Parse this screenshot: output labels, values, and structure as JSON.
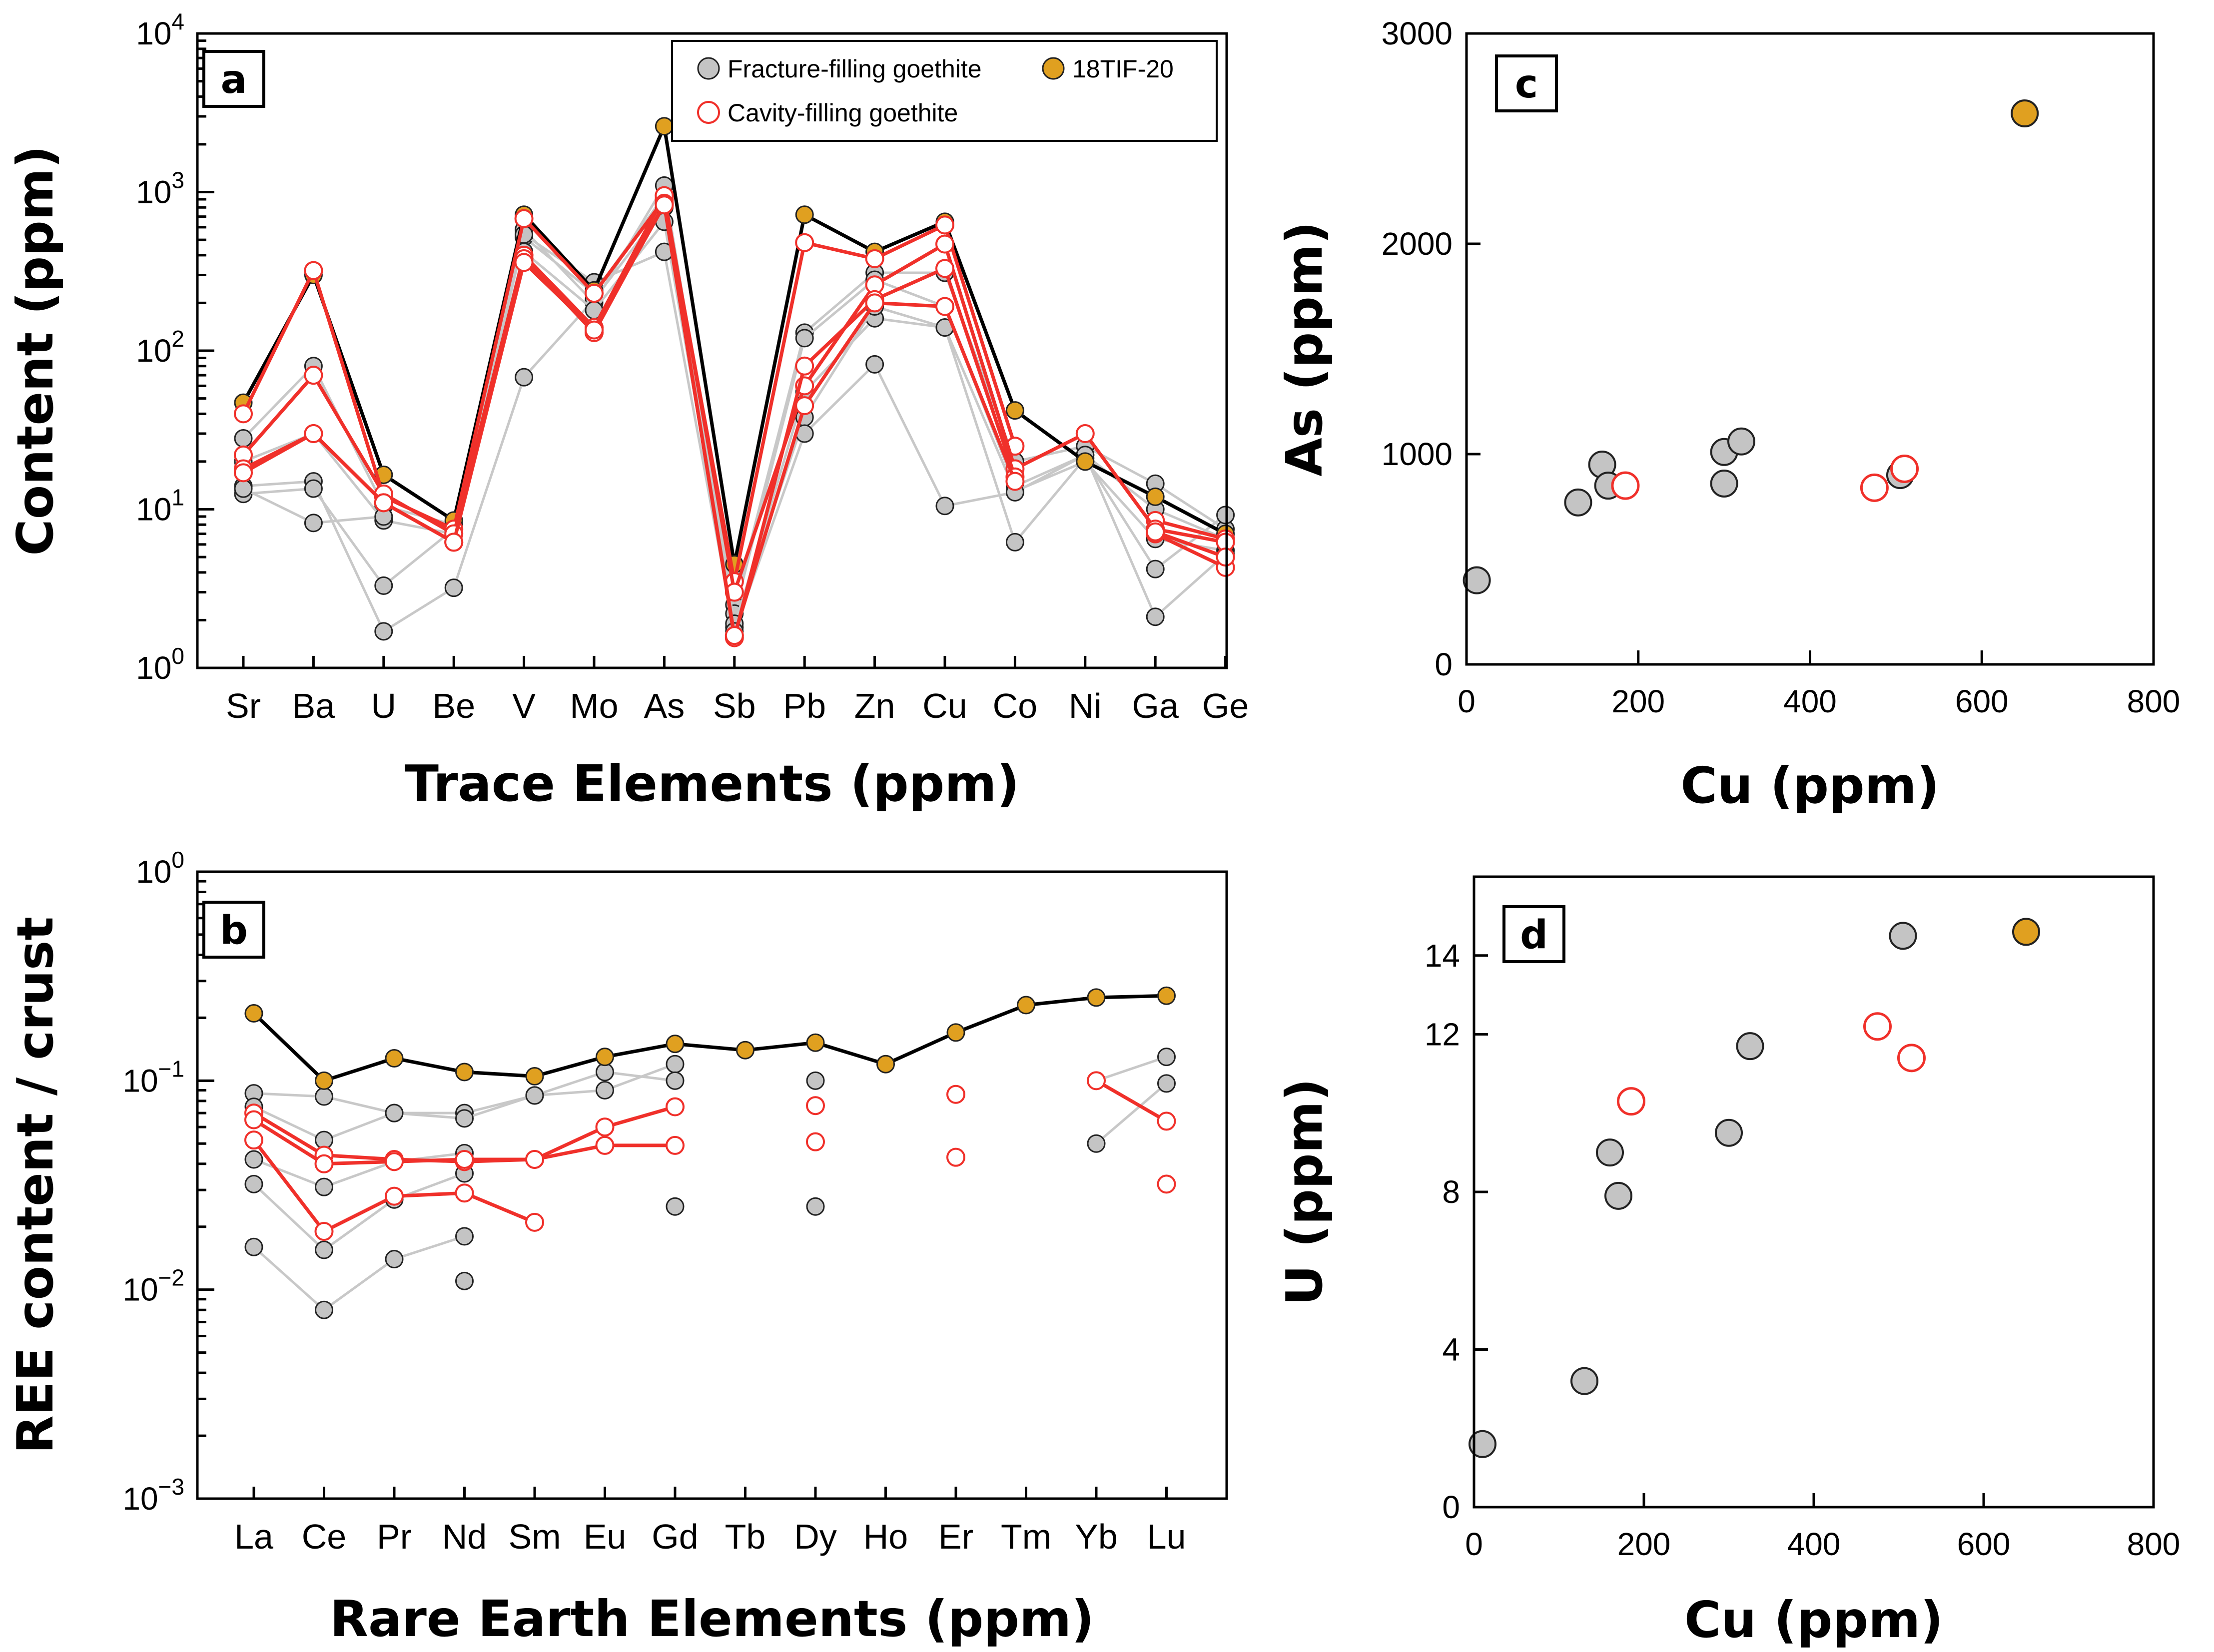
{
  "colors": {
    "fracture_fill": "#c4c4c4",
    "fracture_line": "#c8c8c8",
    "sample_fill": "#e0a020",
    "sample_line": "#000000",
    "cavity_stroke": "#f0302a",
    "cavity_line": "#f0302a"
  },
  "legend": {
    "fracture": "Fracture-filling goethite",
    "sample": "18TIF-20",
    "cavity": "Cavity-filling goethite"
  },
  "chart_data": [
    {
      "id": "a",
      "panel_label": "a",
      "type": "line",
      "yscale": "log",
      "title": "",
      "ylabel": "Content (ppm)",
      "xlabel": "Trace Elements (ppm)",
      "categories": [
        "Sr",
        "Ba",
        "U",
        "Be",
        "V",
        "Mo",
        "As",
        "Sb",
        "Pb",
        "Zn",
        "Cu",
        "Co",
        "Ni",
        "Ga",
        "Ge"
      ],
      "ylim": [
        1,
        10000
      ],
      "yticks": [
        {
          "value": 1,
          "base": "10",
          "exp": "0"
        },
        {
          "value": 10,
          "base": "10",
          "exp": "1"
        },
        {
          "value": 100,
          "base": "10",
          "exp": "2"
        },
        {
          "value": 1000,
          "base": "10",
          "exp": "3"
        },
        {
          "value": 10000,
          "base": "10",
          "exp": "4"
        }
      ],
      "series": [
        {
          "name": "Fracture-filling goethite",
          "kind": "fracture",
          "values": [
            28,
            80,
            10.5,
            8,
            580,
            200,
            1100,
            2.5,
            130,
            310,
            310,
            20,
            25,
            14.5,
            7.5
          ]
        },
        {
          "name": "Fracture-filling goethite",
          "kind": "fracture",
          "values": [
            20,
            30,
            8.5,
            7,
            520,
            230,
            950,
            2.2,
            120,
            280,
            190,
            14,
            22,
            10,
            6.5
          ]
        },
        {
          "name": "Fracture-filling goethite",
          "kind": "fracture",
          "values": [
            14,
            15,
            1.7,
            3.2,
            68,
            210,
            800,
            1.8,
            55,
            160,
            140,
            13,
            20,
            6.5,
            5.5
          ]
        },
        {
          "name": "Fracture-filling goethite",
          "kind": "fracture",
          "values": [
            12.5,
            13.5,
            3.3,
            7.5,
            420,
            180,
            650,
            1.9,
            38,
            190,
            140,
            6.2,
            21,
            4.2,
            9.2
          ]
        },
        {
          "name": "Fracture-filling goethite",
          "kind": "fracture",
          "values": [
            13.5,
            8.2,
            9,
            null,
            540,
            270,
            420,
            1.7,
            30,
            82,
            10.5,
            12.8,
            22,
            2.1,
            5.2
          ]
        },
        {
          "name": "18TIF-20",
          "kind": "sample",
          "values": [
            47,
            300,
            16.5,
            8.5,
            720,
            240,
            2600,
            4.5,
            720,
            420,
            650,
            42,
            20,
            12,
            7
          ]
        },
        {
          "name": "Cavity-filling goethite",
          "kind": "cavity",
          "values": [
            40,
            320,
            12,
            7.5,
            680,
            230,
            900,
            3.5,
            480,
            380,
            620,
            25,
            null,
            8.5,
            6.5
          ]
        },
        {
          "name": "Cavity-filling goethite",
          "kind": "cavity",
          "values": [
            22,
            70,
            12.5,
            7,
            400,
            140,
            950,
            3,
            60,
            260,
            470,
            18,
            30,
            7.5,
            6.2
          ]
        },
        {
          "name": "Cavity-filling goethite",
          "kind": "cavity",
          "values": [
            18,
            30,
            11,
            6.2,
            380,
            130,
            850,
            1.55,
            80,
            210,
            330,
            16,
            null,
            7,
            4.3
          ]
        },
        {
          "name": "Cavity-filling goethite",
          "kind": "cavity",
          "values": [
            17,
            30,
            11,
            6.2,
            360,
            135,
            830,
            1.6,
            45,
            200,
            190,
            15,
            null,
            7.2,
            5
          ]
        }
      ]
    },
    {
      "id": "b",
      "panel_label": "b",
      "type": "line",
      "yscale": "log",
      "title": "",
      "ylabel": "REE content / crust",
      "xlabel": "Rare Earth Elements (ppm)",
      "categories": [
        "La",
        "Ce",
        "Pr",
        "Nd",
        "Sm",
        "Eu",
        "Gd",
        "Tb",
        "Dy",
        "Ho",
        "Er",
        "Tm",
        "Yb",
        "Lu"
      ],
      "ylim": [
        0.001,
        1
      ],
      "yticks": [
        {
          "value": 0.001,
          "base": "10",
          "exp": "−3"
        },
        {
          "value": 0.01,
          "base": "10",
          "exp": "−2"
        },
        {
          "value": 0.1,
          "base": "10",
          "exp": "−1"
        },
        {
          "value": 1,
          "base": "10",
          "exp": "0"
        }
      ],
      "series": [
        {
          "name": "Fracture-filling goethite",
          "kind": "fracture",
          "values": [
            0.087,
            0.084,
            0.07,
            0.07,
            0.085,
            0.09,
            0.12,
            null,
            0.1,
            null,
            null,
            null,
            0.1,
            0.13
          ]
        },
        {
          "name": "Fracture-filling goethite",
          "kind": "fracture",
          "values": [
            0.075,
            0.052,
            0.07,
            0.066,
            0.085,
            0.11,
            0.1,
            null,
            null,
            null,
            null,
            null,
            0.05,
            0.097
          ]
        },
        {
          "name": "Fracture-filling goethite",
          "kind": "fracture",
          "values": [
            0.042,
            0.031,
            0.041,
            0.045,
            null,
            null,
            0.025,
            null,
            0.025,
            null,
            null,
            null,
            null,
            null
          ]
        },
        {
          "name": "Fracture-filling goethite",
          "kind": "fracture",
          "values": [
            0.032,
            0.0155,
            0.027,
            0.036,
            null,
            null,
            null,
            null,
            null,
            null,
            null,
            null,
            null,
            null
          ]
        },
        {
          "name": "Fracture-filling goethite",
          "kind": "fracture",
          "values": [
            0.016,
            0.008,
            0.014,
            0.018,
            null,
            null,
            null,
            null,
            null,
            null,
            null,
            null,
            null,
            null
          ]
        },
        {
          "name": "Fracture-filling goethite",
          "kind": "fracture",
          "values": [
            null,
            null,
            null,
            0.011,
            null,
            null,
            null,
            null,
            null,
            null,
            null,
            null,
            null,
            null
          ]
        },
        {
          "name": "18TIF-20",
          "kind": "sample",
          "values": [
            0.21,
            0.1,
            0.128,
            0.11,
            0.105,
            0.13,
            0.15,
            0.14,
            0.152,
            0.12,
            0.17,
            0.23,
            0.25,
            0.255
          ]
        },
        {
          "name": "Cavity-filling goethite",
          "kind": "cavity",
          "values": [
            0.07,
            0.044,
            0.042,
            0.041,
            0.042,
            0.06,
            0.075,
            null,
            0.076,
            null,
            0.086,
            null,
            0.1,
            0.064
          ]
        },
        {
          "name": "Cavity-filling goethite",
          "kind": "cavity",
          "values": [
            0.065,
            0.04,
            0.041,
            0.042,
            0.042,
            0.049,
            0.049,
            null,
            0.051,
            null,
            0.043,
            null,
            null,
            0.032
          ]
        },
        {
          "name": "Cavity-filling goethite",
          "kind": "cavity",
          "values": [
            0.052,
            0.019,
            0.028,
            0.029,
            0.021,
            null,
            null,
            null,
            null,
            null,
            null,
            null,
            null,
            null
          ]
        }
      ]
    },
    {
      "id": "c",
      "panel_label": "c",
      "type": "scatter",
      "title": "",
      "xlabel": "Cu (ppm)",
      "ylabel": "As (ppm)",
      "xlim": [
        0,
        800
      ],
      "ylim": [
        0,
        3000
      ],
      "xticks": [
        0,
        200,
        400,
        600,
        800
      ],
      "yticks": [
        0,
        1000,
        2000,
        3000
      ],
      "series": [
        {
          "name": "Fracture-filling goethite",
          "kind": "fracture",
          "points": [
            [
              12,
              400
            ],
            [
              130,
              770
            ],
            [
              158,
              950
            ],
            [
              165,
              850
            ],
            [
              300,
              1010
            ],
            [
              300,
              860
            ],
            [
              320,
              1060
            ],
            [
              505,
              900
            ]
          ]
        },
        {
          "name": "18TIF-20",
          "kind": "sample",
          "points": [
            [
              650,
              2620
            ]
          ]
        },
        {
          "name": "Cavity-filling goethite",
          "kind": "cavity",
          "points": [
            [
              185,
              850
            ],
            [
              475,
              840
            ],
            [
              510,
              930
            ]
          ]
        }
      ]
    },
    {
      "id": "d",
      "panel_label": "d",
      "type": "scatter",
      "title": "",
      "xlabel": "Cu (ppm)",
      "ylabel": "U (ppm)",
      "xlim": [
        0,
        800
      ],
      "ylim": [
        0,
        16
      ],
      "xticks": [
        0,
        200,
        400,
        600,
        800
      ],
      "yticks": [
        0,
        4,
        8,
        12,
        14
      ],
      "series": [
        {
          "name": "Fracture-filling goethite",
          "kind": "fracture",
          "points": [
            [
              10,
              1.6
            ],
            [
              130,
              3.2
            ],
            [
              160,
              9
            ],
            [
              170,
              7.9
            ],
            [
              300,
              9.5
            ],
            [
              325,
              11.7
            ],
            [
              505,
              14.5
            ]
          ]
        },
        {
          "name": "18TIF-20",
          "kind": "sample",
          "points": [
            [
              650,
              14.6
            ]
          ]
        },
        {
          "name": "Cavity-filling goethite",
          "kind": "cavity",
          "points": [
            [
              185,
              10.3
            ],
            [
              475,
              12.2
            ],
            [
              515,
              11.4
            ]
          ]
        }
      ]
    }
  ]
}
